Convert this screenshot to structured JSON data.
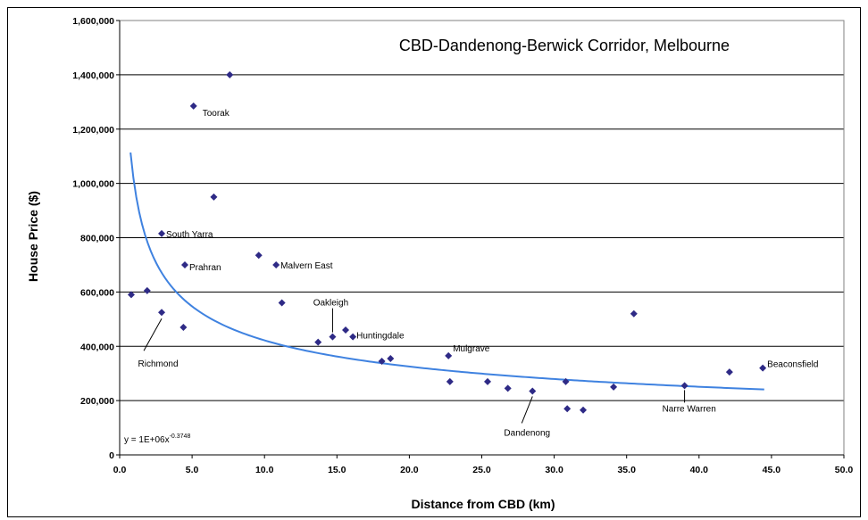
{
  "chart_data": {
    "type": "scatter",
    "title": "CBD-Dandenong-Berwick Corridor, Melbourne",
    "xlabel": "Distance from CBD (km)",
    "ylabel": "House Price ($)",
    "xlim": [
      0,
      50
    ],
    "ylim": [
      0,
      1600000
    ],
    "x_ticks": [
      "0.0",
      "5.0",
      "10.0",
      "15.0",
      "20.0",
      "25.0",
      "30.0",
      "35.0",
      "40.0",
      "45.0",
      "50.0"
    ],
    "y_ticks": [
      "0",
      "200,000",
      "400,000",
      "600,000",
      "800,000",
      "1,000,000",
      "1,200,000",
      "1,400,000",
      "1,600,000"
    ],
    "grid": "horizontal",
    "marker_color": "#2e2a86",
    "trend_color": "#3f82e0",
    "trendline": {
      "type": "power",
      "coefficient": 1000000,
      "exponent": -0.3748,
      "equation_base": "y = 1E+06x",
      "equation_exp": "-0.3748"
    },
    "points": [
      {
        "x": 0.8,
        "y": 590000
      },
      {
        "x": 1.9,
        "y": 605000
      },
      {
        "x": 2.9,
        "y": 525000,
        "label": "Richmond"
      },
      {
        "x": 2.9,
        "y": 815000,
        "label": "South Yarra"
      },
      {
        "x": 4.4,
        "y": 470000
      },
      {
        "x": 4.5,
        "y": 700000,
        "label": "Prahran"
      },
      {
        "x": 5.1,
        "y": 1285000,
        "label": "Toorak"
      },
      {
        "x": 6.5,
        "y": 950000
      },
      {
        "x": 7.6,
        "y": 1400000
      },
      {
        "x": 9.6,
        "y": 735000
      },
      {
        "x": 10.8,
        "y": 700000,
        "label": "Malvern East"
      },
      {
        "x": 11.2,
        "y": 560000
      },
      {
        "x": 13.7,
        "y": 415000
      },
      {
        "x": 14.7,
        "y": 435000,
        "label": "Oakleigh"
      },
      {
        "x": 15.6,
        "y": 460000
      },
      {
        "x": 16.1,
        "y": 435000,
        "label": "Huntingdale"
      },
      {
        "x": 18.1,
        "y": 345000
      },
      {
        "x": 18.7,
        "y": 355000
      },
      {
        "x": 22.7,
        "y": 365000,
        "label": "Mulgrave"
      },
      {
        "x": 22.8,
        "y": 270000
      },
      {
        "x": 25.4,
        "y": 270000
      },
      {
        "x": 26.8,
        "y": 245000
      },
      {
        "x": 28.5,
        "y": 235000,
        "label": "Dandenong"
      },
      {
        "x": 30.8,
        "y": 270000
      },
      {
        "x": 30.9,
        "y": 170000
      },
      {
        "x": 32.0,
        "y": 165000
      },
      {
        "x": 34.1,
        "y": 250000
      },
      {
        "x": 35.5,
        "y": 520000
      },
      {
        "x": 39.0,
        "y": 255000,
        "label": "Narre Warren"
      },
      {
        "x": 42.1,
        "y": 305000
      },
      {
        "x": 44.4,
        "y": 320000,
        "label": "Beaconsfield"
      }
    ]
  }
}
